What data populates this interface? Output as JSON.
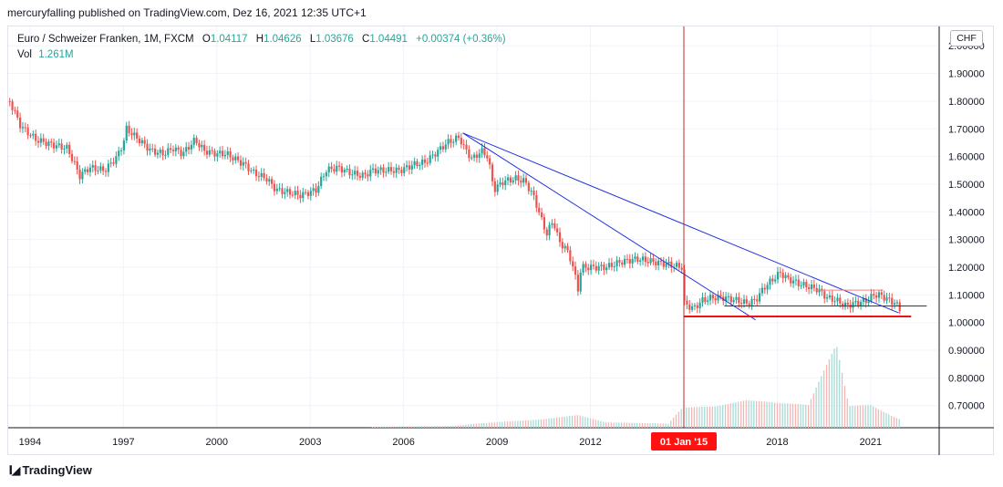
{
  "header": {
    "published_line": "mercuryfalling published on TradingView.com, Dez 16, 2021 12:35 UTC+1"
  },
  "legend": {
    "symbol": "Euro / Schweizer Franken, 1M, FXCM",
    "open_label": "O",
    "open_value": "1.04117",
    "high_label": "H",
    "high_value": "1.04626",
    "low_label": "L",
    "low_value": "1.03676",
    "close_label": "C",
    "close_value": "1.04491",
    "change": "+0.00374 (+0.36%)",
    "vol_label": "Vol",
    "vol_value": "1.261M"
  },
  "currency_badge": "CHF",
  "footer": {
    "logo_text": "TradingView"
  },
  "colors": {
    "up": "#26a69a",
    "down": "#ef5350",
    "trendline": "#2233dd",
    "support": "#ee1111",
    "resistance": "#f08080",
    "channel": "#1a3a8a",
    "marker": "#c62828",
    "grid": "#f0f3fa"
  },
  "chart_data": {
    "type": "candlestick",
    "symbol": "EURCHF",
    "timeframe": "1M",
    "x_axis": {
      "range": [
        1993.3,
        2023.2
      ],
      "tick_labels": [
        "1994",
        "1997",
        "2000",
        "2003",
        "2006",
        "2009",
        "2012",
        "2018",
        "2021"
      ],
      "tick_values": [
        1994,
        1997,
        2000,
        2003,
        2006,
        2009,
        2012,
        2018,
        2021
      ],
      "highlighted_label": "01 Jan '15",
      "highlighted_value": 2015.0
    },
    "y_axis": {
      "range": [
        0.62,
        2.07
      ],
      "tick_labels": [
        "0.70000",
        "0.80000",
        "0.90000",
        "1.00000",
        "1.10000",
        "1.20000",
        "1.30000",
        "1.40000",
        "1.50000",
        "1.60000",
        "1.70000",
        "1.80000",
        "1.90000",
        "2.00000"
      ],
      "tick_values": [
        0.7,
        0.8,
        0.9,
        1.0,
        1.1,
        1.2,
        1.3,
        1.4,
        1.5,
        1.6,
        1.7,
        1.8,
        1.9,
        2.0
      ],
      "position": "right"
    },
    "price_path": [
      [
        1993.35,
        1.8
      ],
      [
        1993.7,
        1.71
      ],
      [
        1994.2,
        1.66
      ],
      [
        1994.8,
        1.64
      ],
      [
        1995.2,
        1.63
      ],
      [
        1995.6,
        1.53
      ],
      [
        1995.9,
        1.56
      ],
      [
        1996.4,
        1.55
      ],
      [
        1996.8,
        1.6
      ],
      [
        1997.0,
        1.65
      ],
      [
        1997.1,
        1.7
      ],
      [
        1997.5,
        1.66
      ],
      [
        1997.9,
        1.62
      ],
      [
        1998.3,
        1.61
      ],
      [
        1998.6,
        1.63
      ],
      [
        1998.9,
        1.61
      ],
      [
        1999.3,
        1.66
      ],
      [
        1999.6,
        1.62
      ],
      [
        2000.0,
        1.61
      ],
      [
        2000.3,
        1.61
      ],
      [
        2000.6,
        1.59
      ],
      [
        2000.9,
        1.57
      ],
      [
        2001.2,
        1.54
      ],
      [
        2001.6,
        1.52
      ],
      [
        2001.9,
        1.48
      ],
      [
        2002.3,
        1.47
      ],
      [
        2002.7,
        1.46
      ],
      [
        2003.2,
        1.48
      ],
      [
        2003.5,
        1.55
      ],
      [
        2003.9,
        1.56
      ],
      [
        2004.3,
        1.54
      ],
      [
        2004.7,
        1.53
      ],
      [
        2005.0,
        1.55
      ],
      [
        2005.5,
        1.55
      ],
      [
        2005.9,
        1.55
      ],
      [
        2006.3,
        1.57
      ],
      [
        2006.7,
        1.58
      ],
      [
        2007.0,
        1.61
      ],
      [
        2007.4,
        1.65
      ],
      [
        2007.8,
        1.67
      ],
      [
        2007.9,
        1.64
      ],
      [
        2008.2,
        1.59
      ],
      [
        2008.5,
        1.62
      ],
      [
        2008.7,
        1.6
      ],
      [
        2008.9,
        1.48
      ],
      [
        2009.2,
        1.51
      ],
      [
        2009.6,
        1.52
      ],
      [
        2009.9,
        1.51
      ],
      [
        2010.2,
        1.45
      ],
      [
        2010.4,
        1.38
      ],
      [
        2010.6,
        1.32
      ],
      [
        2010.8,
        1.37
      ],
      [
        2011.0,
        1.29
      ],
      [
        2011.2,
        1.27
      ],
      [
        2011.4,
        1.22
      ],
      [
        2011.6,
        1.12
      ],
      [
        2011.7,
        1.2
      ],
      [
        2012.0,
        1.2
      ],
      [
        2012.5,
        1.2
      ],
      [
        2013.0,
        1.22
      ],
      [
        2013.5,
        1.23
      ],
      [
        2014.0,
        1.22
      ],
      [
        2014.5,
        1.21
      ],
      [
        2014.95,
        1.2
      ],
      [
        2015.0,
        1.07
      ],
      [
        2015.3,
        1.05
      ],
      [
        2015.6,
        1.08
      ],
      [
        2015.9,
        1.09
      ],
      [
        2016.3,
        1.09
      ],
      [
        2016.7,
        1.08
      ],
      [
        2017.0,
        1.07
      ],
      [
        2017.3,
        1.08
      ],
      [
        2017.6,
        1.13
      ],
      [
        2017.9,
        1.16
      ],
      [
        2018.1,
        1.18
      ],
      [
        2018.3,
        1.16
      ],
      [
        2018.7,
        1.14
      ],
      [
        2019.0,
        1.13
      ],
      [
        2019.3,
        1.12
      ],
      [
        2019.6,
        1.09
      ],
      [
        2019.9,
        1.08
      ],
      [
        2020.2,
        1.06
      ],
      [
        2020.5,
        1.07
      ],
      [
        2020.9,
        1.08
      ],
      [
        2021.1,
        1.1
      ],
      [
        2021.3,
        1.1
      ],
      [
        2021.6,
        1.08
      ],
      [
        2021.8,
        1.07
      ],
      [
        2021.95,
        1.045
      ]
    ],
    "volume_path": [
      [
        2005.0,
        0.002
      ],
      [
        2007.5,
        0.01
      ],
      [
        2008.5,
        0.02
      ],
      [
        2010.5,
        0.03
      ],
      [
        2011.6,
        0.045
      ],
      [
        2012.5,
        0.02
      ],
      [
        2014.5,
        0.02
      ],
      [
        2015.0,
        0.12
      ],
      [
        2016.0,
        0.1
      ],
      [
        2017.0,
        0.11
      ],
      [
        2018.0,
        0.09
      ],
      [
        2019.0,
        0.08
      ],
      [
        2019.9,
        0.3
      ],
      [
        2020.3,
        0.08
      ],
      [
        2021.0,
        0.09
      ],
      [
        2021.9,
        0.04
      ]
    ],
    "annotations": [
      {
        "type": "trendline",
        "color": "blue",
        "from": [
          2007.9,
          1.685
        ],
        "to": [
          2021.9,
          1.035
        ]
      },
      {
        "type": "trendline",
        "color": "blue",
        "from": [
          2007.9,
          1.685
        ],
        "to": [
          2017.3,
          1.01
        ]
      },
      {
        "type": "horizontal_line",
        "color": "red",
        "y": 1.022,
        "x_range": [
          2015.0,
          2022.3
        ]
      },
      {
        "type": "horizontal_line",
        "color": "salmon",
        "y": 1.117,
        "x_range": [
          2019.4,
          2021.4
        ]
      },
      {
        "type": "horizontal_line",
        "color": "navy",
        "y": 1.06,
        "x_range": [
          2016.3,
          2022.8
        ]
      },
      {
        "type": "vertical_line",
        "color": "darkred",
        "x": 2015.0
      }
    ],
    "grid": true,
    "legend_position": "top-left"
  }
}
